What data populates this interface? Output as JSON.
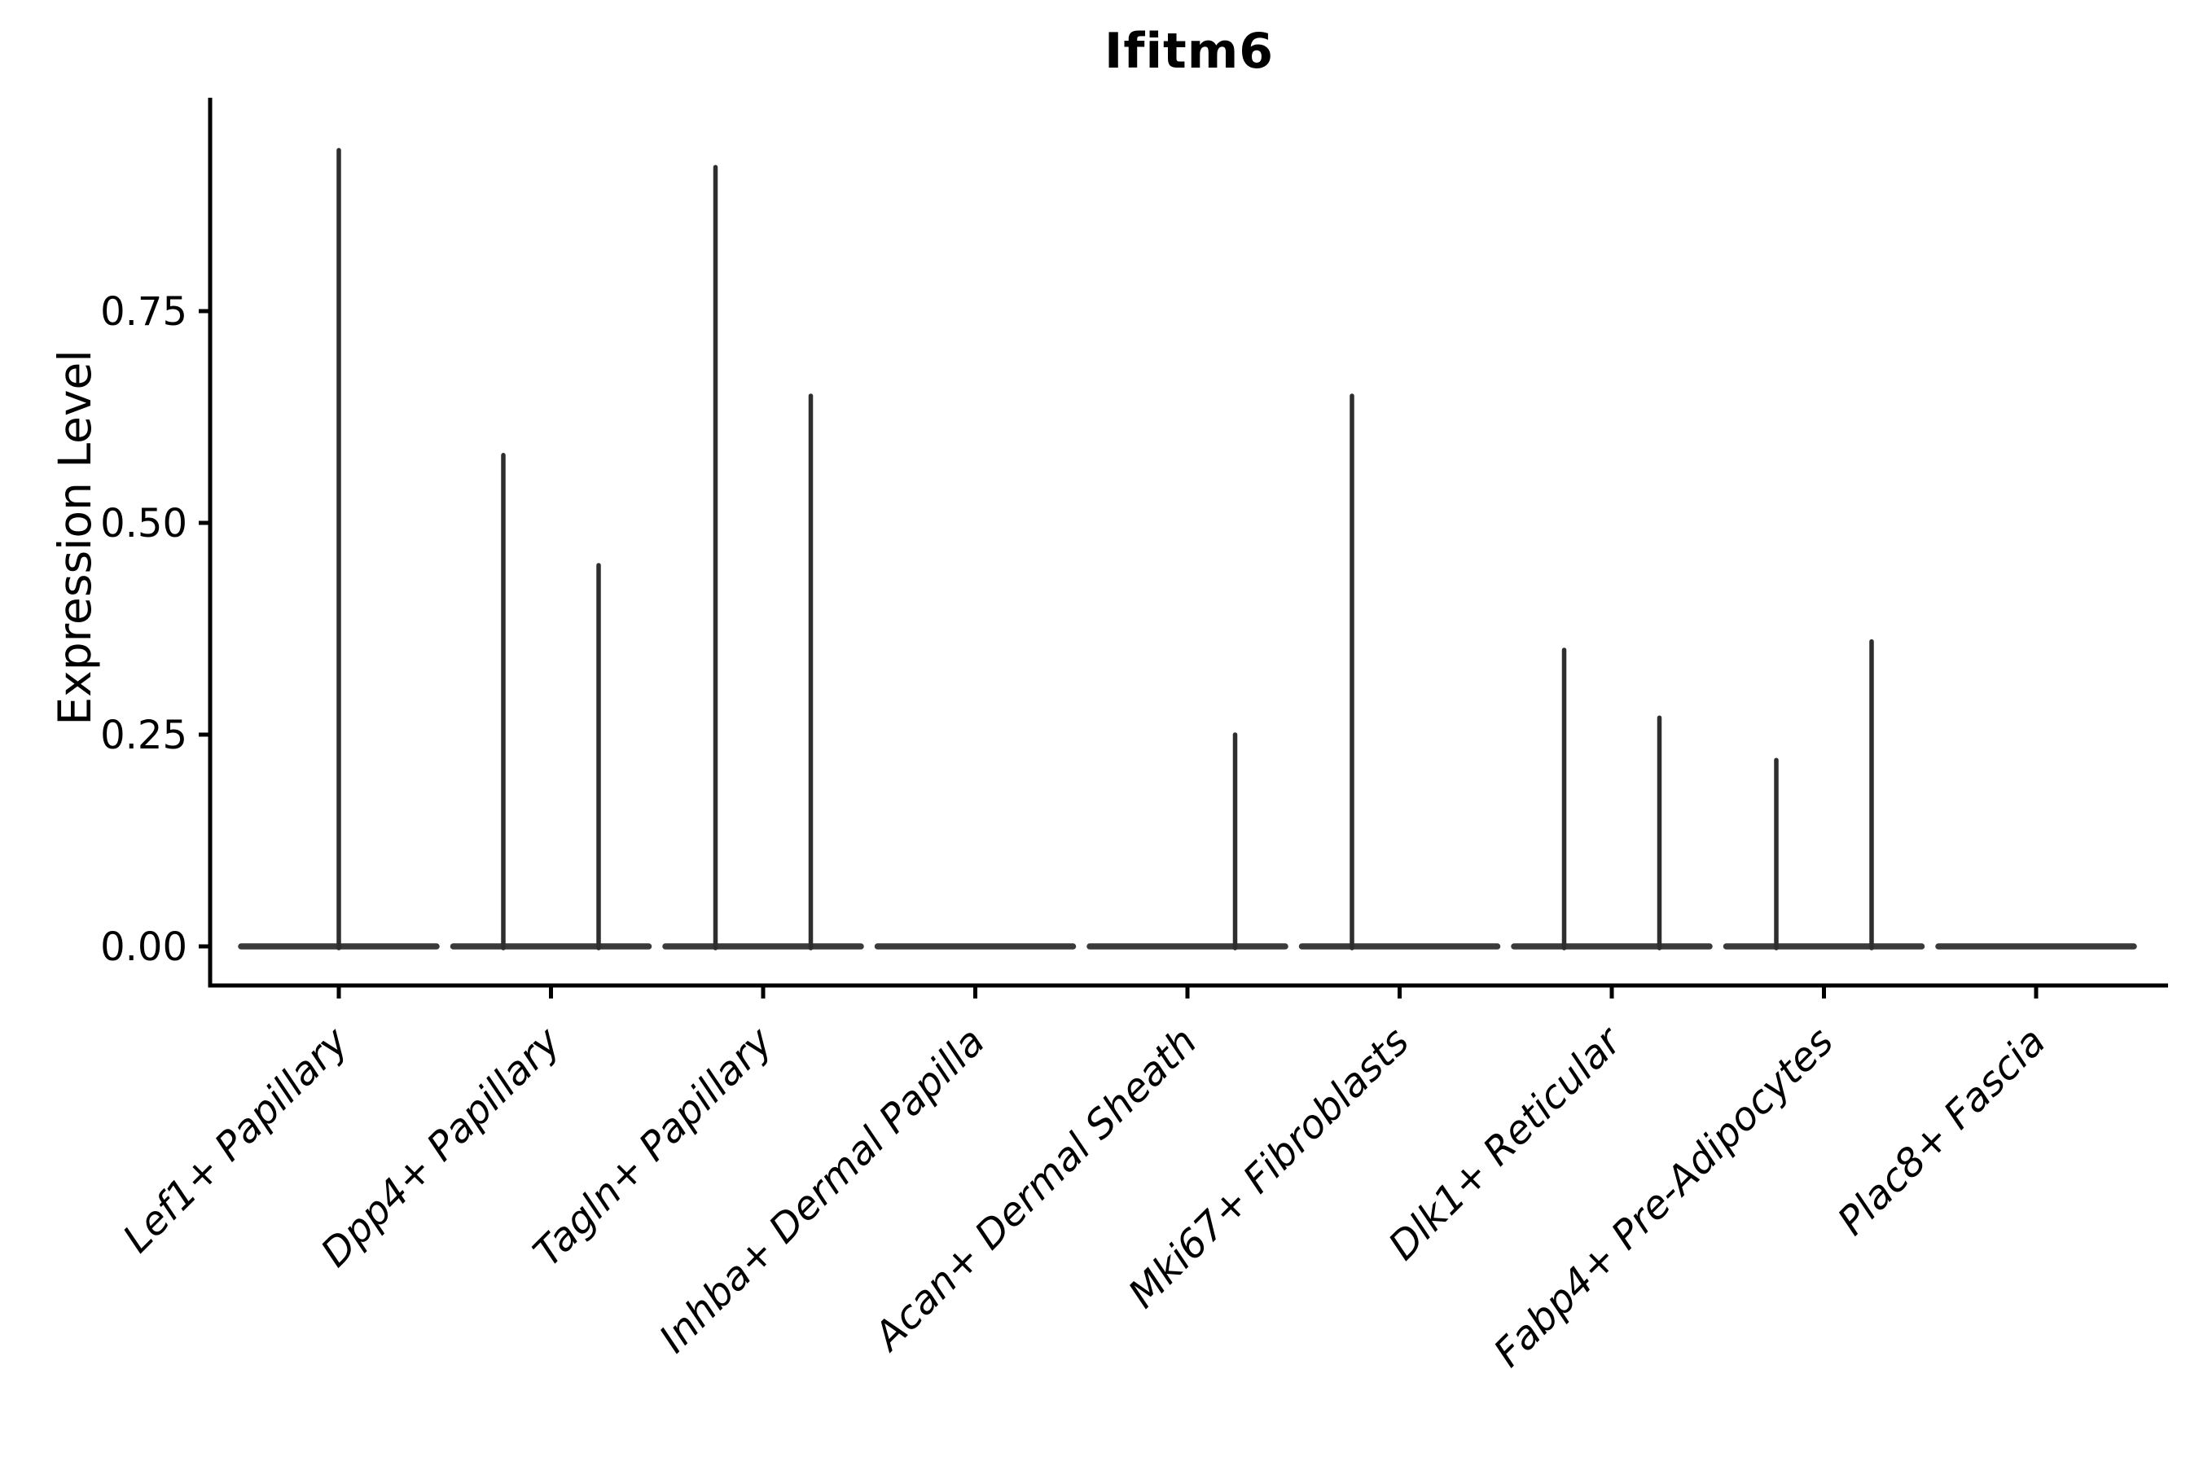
{
  "chart_data": {
    "type": "violin",
    "title": "Ifitm6",
    "xlabel": "",
    "ylabel": "Expression Level",
    "ylim": [
      -0.046,
      1.0
    ],
    "ytick_labels": [
      "0.00",
      "0.25",
      "0.50",
      "0.75"
    ],
    "ytick_values": [
      0.0,
      0.25,
      0.5,
      0.75
    ],
    "grid": false,
    "legend": "none",
    "stroke_color": "#2e2e2e",
    "baseline_color": "#3a3a3a",
    "axis_color": "#000000",
    "categories": [
      "Lef1+ Papillary",
      "Dpp4+ Papillary",
      "Tagln+ Papillary",
      "Inhba+ Dermal Papilla",
      "Acan+ Dermal Sheath",
      "Mki67+ Fibroblasts",
      "Dlk1+ Reticular",
      "Fabp4+ Pre-Adipocytes",
      "Plac8+ Fascia"
    ],
    "violins": [
      {
        "category": "Lef1+ Papillary",
        "baseline_value": 0.0,
        "spikes": [
          {
            "position": "center",
            "max": 0.94
          }
        ]
      },
      {
        "category": "Dpp4+ Papillary",
        "baseline_value": 0.0,
        "spikes": [
          {
            "position": "left",
            "max": 0.58
          },
          {
            "position": "right",
            "max": 0.45
          }
        ]
      },
      {
        "category": "Tagln+ Papillary",
        "baseline_value": 0.0,
        "spikes": [
          {
            "position": "left",
            "max": 0.92
          },
          {
            "position": "right",
            "max": 0.65
          }
        ]
      },
      {
        "category": "Inhba+ Dermal Papilla",
        "baseline_value": 0.0,
        "spikes": []
      },
      {
        "category": "Acan+ Dermal Sheath",
        "baseline_value": 0.0,
        "spikes": [
          {
            "position": "right",
            "max": 0.25
          }
        ]
      },
      {
        "category": "Mki67+ Fibroblasts",
        "baseline_value": 0.0,
        "spikes": [
          {
            "position": "left",
            "max": 0.65
          }
        ]
      },
      {
        "category": "Dlk1+ Reticular",
        "baseline_value": 0.0,
        "spikes": [
          {
            "position": "left",
            "max": 0.35
          },
          {
            "position": "right",
            "max": 0.27
          }
        ]
      },
      {
        "category": "Fabp4+ Pre-Adipocytes",
        "baseline_value": 0.0,
        "spikes": [
          {
            "position": "left",
            "max": 0.22
          },
          {
            "position": "right",
            "max": 0.36
          }
        ]
      },
      {
        "category": "Plac8+ Fascia",
        "baseline_value": 0.0,
        "spikes": []
      }
    ]
  }
}
